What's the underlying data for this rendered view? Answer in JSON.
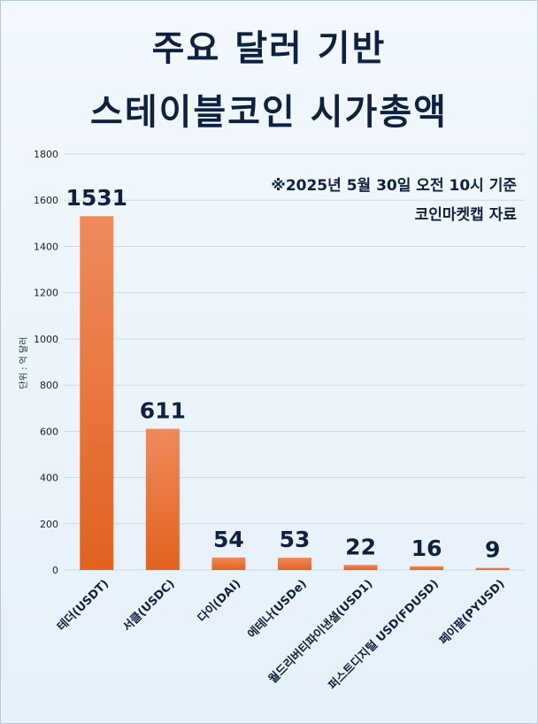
{
  "title": {
    "line1": "주요 달러 기반",
    "line2": "스테이블코인 시가총액"
  },
  "note": {
    "line1": "※2025년 5월 30일 오전 10시 기준",
    "line2": "코인마켓캡 자료"
  },
  "chart_data": {
    "type": "bar",
    "categories": [
      "테더(USDT)",
      "서클(USDC)",
      "다이(DAI)",
      "에테나(USDe)",
      "월드리버티파이낸셜(USD1)",
      "퍼스트디지털 USD(FDUSD)",
      "페이팔(PYUSD)"
    ],
    "values": [
      1531,
      611,
      54,
      53,
      22,
      16,
      9
    ],
    "data_labels": [
      "1531",
      "611",
      "54",
      "53",
      "22",
      "16",
      "9"
    ],
    "ylabel": "단위 : 억 달러",
    "ylim": [
      0,
      1800
    ],
    "yticks": [
      "0",
      "200",
      "400",
      "600",
      "800",
      "1000",
      "1200",
      "1400",
      "1600",
      "1800"
    ],
    "grid": true,
    "legend": "none",
    "colors": {
      "bar_top": "#ef8a5c",
      "bar_bottom": "#e2621f",
      "text": "#0d2240",
      "grid": "#d0d8e0"
    }
  }
}
